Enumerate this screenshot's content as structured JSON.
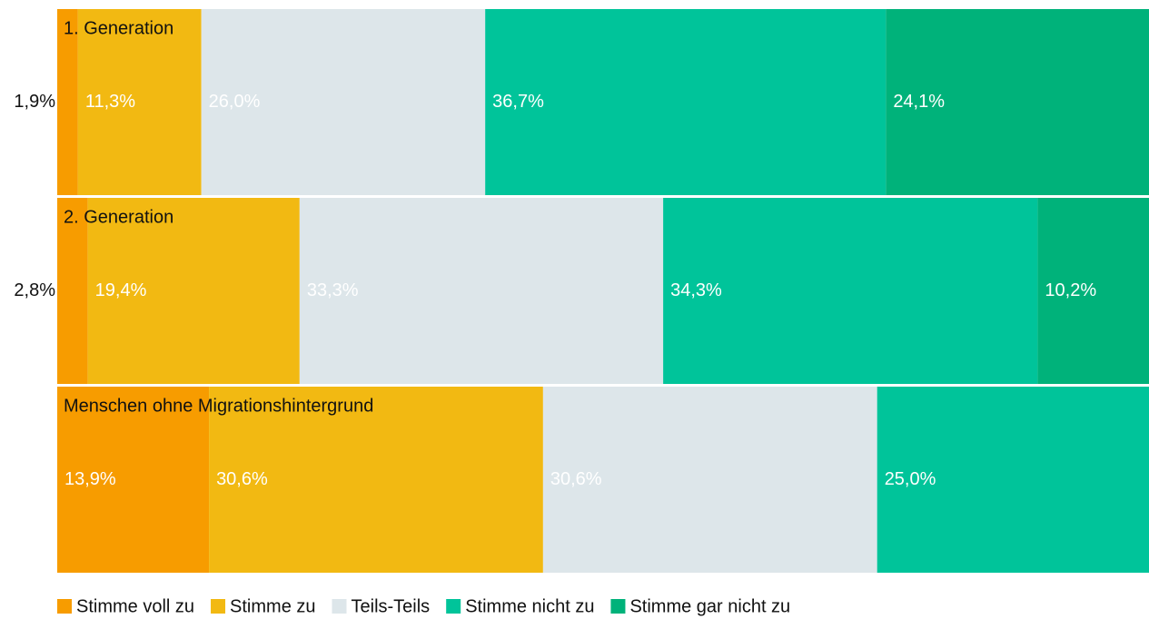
{
  "chart_data": {
    "type": "stacked_bar_horizontal",
    "categories": [
      "1. Generation",
      "2. Generation",
      "Menschen ohne Migrationshintergrund"
    ],
    "xlim": [
      0,
      100
    ],
    "legend": "bottom",
    "series": [
      {
        "name": "Stimme voll zu",
        "color": "#f79c00",
        "values": [
          1.9,
          2.8,
          13.9
        ],
        "value_labels": [
          "1,9%",
          "2,8%",
          "13,9%"
        ]
      },
      {
        "name": "Stimme zu",
        "color": "#f2b912",
        "values": [
          11.3,
          19.4,
          30.6
        ],
        "value_labels": [
          "11,3%",
          "19,4%",
          "30,6%"
        ]
      },
      {
        "name": "Teils-Teils",
        "color": "#dde6ea",
        "values": [
          26.0,
          33.3,
          30.6
        ],
        "value_labels": [
          "26,0%",
          "33,3%",
          "30,6%"
        ]
      },
      {
        "name": "Stimme nicht zu",
        "color": "#00c49a",
        "values": [
          36.7,
          34.3,
          25.0
        ],
        "value_labels": [
          "36,7%",
          "34,3%",
          "25,0%"
        ]
      },
      {
        "name": "Stimme gar nicht zu",
        "color": "#00b27a",
        "values": [
          24.1,
          10.2,
          null
        ],
        "value_labels": [
          "24,1%",
          "10,2%",
          null
        ]
      }
    ]
  }
}
